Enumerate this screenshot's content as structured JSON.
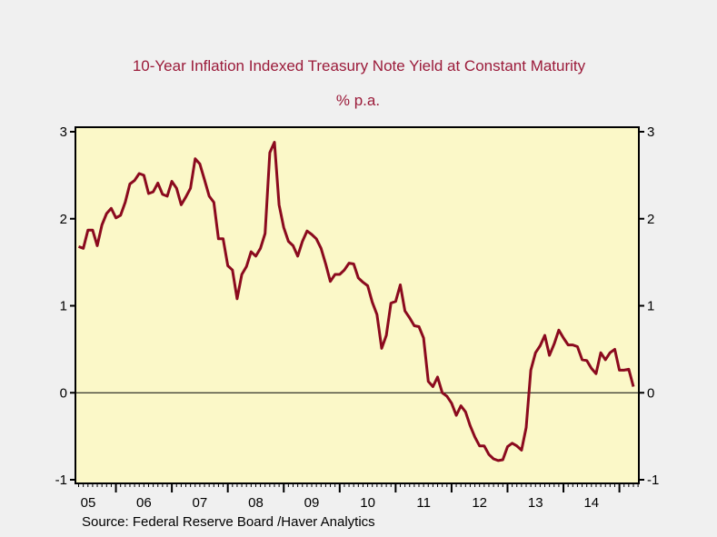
{
  "chart_data": {
    "type": "line",
    "title": "10-Year Inflation Indexed Treasury Note Yield at Constant Maturity",
    "subtitle": "% p.a.",
    "source": "Source:  Federal Reserve Board /Haver Analytics",
    "xlabel": "",
    "ylabel": "",
    "ylim": [
      -1,
      3
    ],
    "yticks": [
      "3",
      "2",
      "1",
      "0",
      "-1"
    ],
    "ytick_values": [
      3,
      2,
      1,
      0,
      -1
    ],
    "xlim": [
      "2005-04",
      "2015-04"
    ],
    "xtick_labels": [
      "05",
      "06",
      "07",
      "08",
      "09",
      "10",
      "11",
      "12",
      "13",
      "14"
    ],
    "grid": false,
    "zero_line": true,
    "legend": "none",
    "colors": {
      "line": "#8b0a1e",
      "plot_bg": "#fbf8c8",
      "page_bg": "#f0f0f0",
      "title": "#9b1b3a"
    },
    "series": [
      {
        "start": "2005-05",
        "frequency": "monthly",
        "values": [
          1.68,
          1.66,
          1.87,
          1.87,
          1.69,
          1.93,
          2.06,
          2.12,
          2.01,
          2.04,
          2.19,
          2.4,
          2.44,
          2.52,
          2.5,
          2.29,
          2.31,
          2.41,
          2.28,
          2.26,
          2.43,
          2.35,
          2.16,
          2.25,
          2.35,
          2.69,
          2.63,
          2.45,
          2.26,
          2.19,
          1.77,
          1.77,
          1.46,
          1.41,
          1.08,
          1.36,
          1.45,
          1.62,
          1.57,
          1.66,
          1.83,
          2.76,
          2.88,
          2.16,
          1.9,
          1.74,
          1.69,
          1.57,
          1.74,
          1.86,
          1.82,
          1.77,
          1.66,
          1.48,
          1.28,
          1.36,
          1.36,
          1.41,
          1.49,
          1.48,
          1.32,
          1.27,
          1.23,
          1.04,
          0.9,
          0.51,
          0.66,
          1.03,
          1.05,
          1.24,
          0.94,
          0.86,
          0.77,
          0.76,
          0.63,
          0.13,
          0.07,
          0.18,
          0.0,
          -0.04,
          -0.12,
          -0.26,
          -0.15,
          -0.22,
          -0.38,
          -0.51,
          -0.61,
          -0.61,
          -0.71,
          -0.76,
          -0.78,
          -0.77,
          -0.62,
          -0.58,
          -0.61,
          -0.66,
          -0.4,
          0.26,
          0.46,
          0.54,
          0.66,
          0.43,
          0.56,
          0.72,
          0.63,
          0.55,
          0.55,
          0.53,
          0.38,
          0.37,
          0.28,
          0.22,
          0.46,
          0.38,
          0.46,
          0.5,
          0.26,
          0.26,
          0.27,
          0.07
        ]
      }
    ]
  }
}
